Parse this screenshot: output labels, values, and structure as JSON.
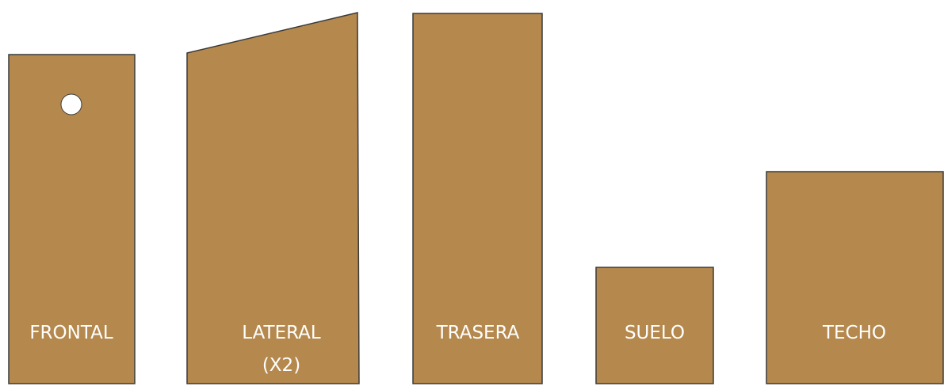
{
  "title": "",
  "colors": {
    "wood": "#b5894e",
    "edge": "#3a3a3a",
    "label": "#ffffff",
    "hole": "#ffffff",
    "background": "#ffffff"
  },
  "pieces": [
    {
      "id": "frontal",
      "label": "FRONTAL",
      "label2": "",
      "has_hole": true
    },
    {
      "id": "lateral",
      "label": "LATERAL",
      "label2": "(X2)",
      "has_hole": false
    },
    {
      "id": "trasera",
      "label": "TRASERA",
      "label2": "",
      "has_hole": false
    },
    {
      "id": "suelo",
      "label": "SUELO",
      "label2": "",
      "has_hole": false
    },
    {
      "id": "techo",
      "label": "TECHO",
      "label2": "",
      "has_hole": false
    }
  ]
}
